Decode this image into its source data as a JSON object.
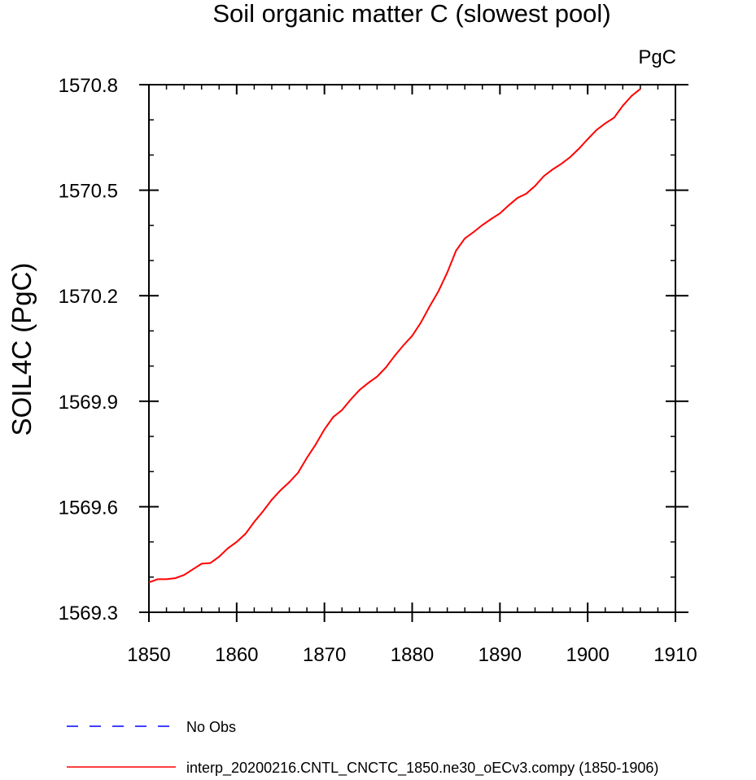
{
  "chart_data": {
    "type": "line",
    "title": "Soil organic matter C (slowest pool)",
    "units_label": "PgC",
    "ylabel": "SOIL4C  (PgC)",
    "xlabel": "",
    "xlim": [
      1850,
      1910
    ],
    "ylim": [
      1569.3,
      1570.8
    ],
    "x_ticks": [
      1850,
      1860,
      1870,
      1880,
      1890,
      1900,
      1910
    ],
    "x_tick_labels": [
      "1850",
      "1860",
      "1870",
      "1880",
      "1890",
      "1900",
      "1910"
    ],
    "y_ticks": [
      1569.3,
      1569.6,
      1569.9,
      1570.2,
      1570.5,
      1570.8
    ],
    "y_tick_labels": [
      "1569.3",
      "1569.6",
      "1569.9",
      "1570.2",
      "1570.5",
      "1570.8"
    ],
    "y_minor_step": 0.1,
    "x_minor_step": 2,
    "grid": false,
    "legend_position": "bottom",
    "legend": [
      {
        "label": "No Obs",
        "color": "#0000ff",
        "dash": "dashed"
      },
      {
        "label": "interp_20200216.CNTL_CNCTC_1850.ne30_oECv3.compy (1850-1906)",
        "color": "#ff0000",
        "dash": "solid"
      }
    ],
    "series": [
      {
        "name": "interp_20200216.CNTL_CNCTC_1850.ne30_oECv3.compy (1850-1906)",
        "color": "#ff0000",
        "x": [
          1850,
          1851,
          1852,
          1853,
          1854,
          1855,
          1856,
          1857,
          1858,
          1859,
          1860,
          1861,
          1862,
          1863,
          1864,
          1865,
          1866,
          1867,
          1868,
          1869,
          1870,
          1871,
          1872,
          1873,
          1874,
          1875,
          1876,
          1877,
          1878,
          1879,
          1880,
          1881,
          1882,
          1883,
          1884,
          1885,
          1886,
          1887,
          1888,
          1889,
          1890,
          1891,
          1892,
          1893,
          1894,
          1895,
          1896,
          1897,
          1898,
          1899,
          1900,
          1901,
          1902,
          1903,
          1904,
          1905,
          1906
        ],
        "y": [
          1569.385,
          1569.394,
          1569.394,
          1569.397,
          1569.406,
          1569.422,
          1569.438,
          1569.44,
          1569.458,
          1569.482,
          1569.5,
          1569.523,
          1569.557,
          1569.587,
          1569.62,
          1569.647,
          1569.67,
          1569.697,
          1569.739,
          1569.777,
          1569.82,
          1569.855,
          1569.875,
          1569.905,
          1569.932,
          1569.952,
          1569.97,
          1569.996,
          1570.029,
          1570.059,
          1570.086,
          1570.124,
          1570.17,
          1570.213,
          1570.266,
          1570.328,
          1570.363,
          1570.381,
          1570.401,
          1570.418,
          1570.434,
          1570.457,
          1570.478,
          1570.49,
          1570.512,
          1570.54,
          1570.559,
          1570.575,
          1570.594,
          1570.618,
          1570.645,
          1570.671,
          1570.69,
          1570.706,
          1570.74,
          1570.768,
          1570.788
        ]
      }
    ]
  }
}
